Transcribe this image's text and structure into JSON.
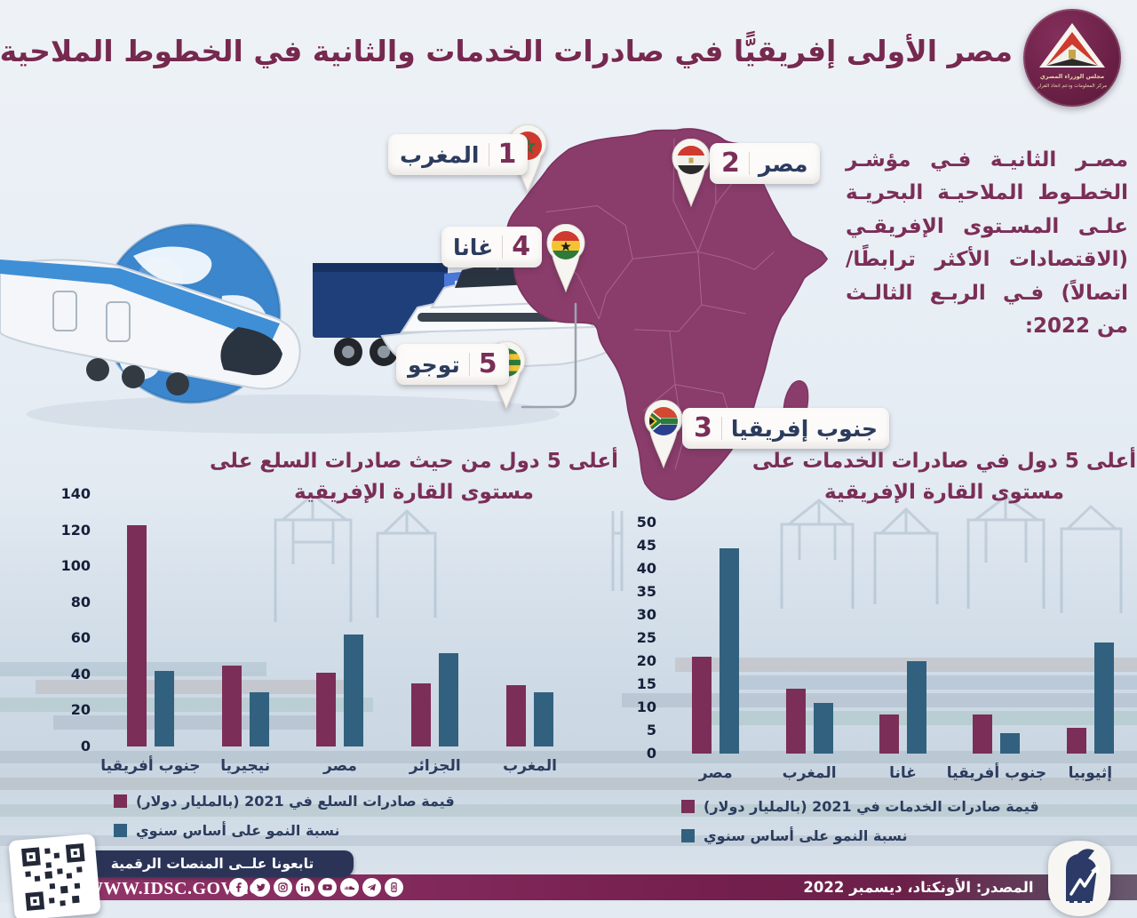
{
  "header": {
    "title": "مصر الأولى إفريقيًّا في صادرات الخدمات والثانية في الخطوط الملاحية",
    "logo_line1": "مجلس الوزراء المصري",
    "logo_line2": "مركز المعلومات ودعم اتخاذ القرار"
  },
  "intro_text": "مصـر الثانيـة فـي مؤشـر الخطـوط الملاحيـة البحريـة علـى المسـتوى الإفريقـي (الاقتصادات الأكثر ترابطًا/ اتصالاً) فـي الربـع الثالـث من 2022:",
  "map": {
    "pins": [
      {
        "rank": "1",
        "name": "المغرب",
        "flag": "morocco"
      },
      {
        "rank": "2",
        "name": "مصر",
        "flag": "egypt"
      },
      {
        "rank": "3",
        "name": "جنوب إفريقيا",
        "flag": "south-africa"
      },
      {
        "rank": "4",
        "name": "غانا",
        "flag": "ghana"
      },
      {
        "rank": "5",
        "name": "توجو",
        "flag": "togo"
      }
    ]
  },
  "chart_data": [
    {
      "type": "bar",
      "title": "أعلى 5 دول من حيث صادرات السلع على مستوى القارة الإفريقية",
      "categories": [
        "جنوب أفريقيا",
        "نيجيريا",
        "مصر",
        "الجزائر",
        "المغرب"
      ],
      "series": [
        {
          "name": "قيمة صادرات السلع في 2021 (بالمليار دولار)",
          "color": "#7b2e57",
          "values": [
            123,
            45,
            41,
            35,
            34
          ]
        },
        {
          "name": "نسبة النمو على أساس سنوي",
          "color": "#31617f",
          "values": [
            42,
            30,
            62,
            52,
            30
          ]
        }
      ],
      "ylim": [
        0,
        140
      ],
      "ytick": 20,
      "grid": false,
      "legend_position": "bottom-left"
    },
    {
      "type": "bar",
      "title": "أعلى 5 دول في صادرات الخدمات على مستوى القارة الإفريقية",
      "categories": [
        "مصر",
        "المغرب",
        "غانا",
        "جنوب أفريقيا",
        "إثيوبيا"
      ],
      "series": [
        {
          "name": "قيمة صادرات الخدمات في 2021 (بالمليار دولار)",
          "color": "#7b2e57",
          "values": [
            21,
            14,
            8.5,
            8.5,
            5.5
          ]
        },
        {
          "name": "نسبة النمو على أساس سنوي",
          "color": "#31617f",
          "values": [
            44.5,
            11,
            20,
            4.5,
            24
          ]
        }
      ],
      "ylim": [
        0,
        50
      ],
      "ytick": 5,
      "grid": false,
      "legend_position": "bottom-left"
    }
  ],
  "footer": {
    "follow_text": "تابعونا علــى المنصات الرقمية",
    "website": "WWW.IDSC.GOV.EG",
    "source": "المصدر: الأونكتاد، ديسمبر 2022",
    "social_icons": [
      "facebook",
      "twitter",
      "instagram",
      "linkedin",
      "youtube",
      "soundcloud",
      "telegram",
      "mobile-app"
    ]
  },
  "colors": {
    "accent_maroon": "#7b2e57",
    "accent_blue": "#31617f",
    "navy": "#2c3c5e",
    "map_fill": "#8a3c6a"
  }
}
